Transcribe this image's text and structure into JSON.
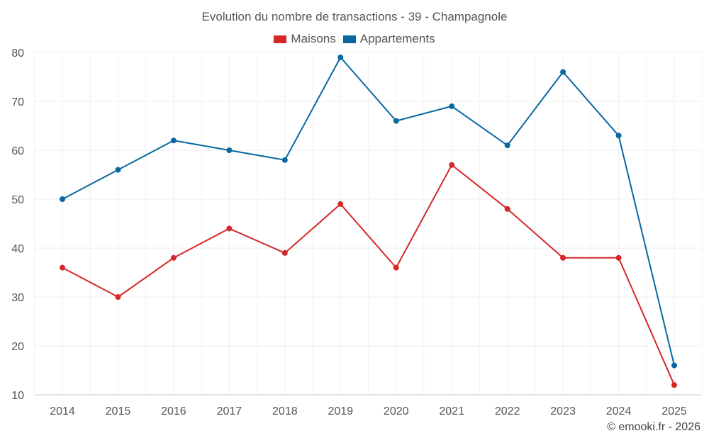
{
  "chart_data": {
    "type": "line",
    "title": "Evolution du nombre de transactions - 39 - Champagnole",
    "categories": [
      "2014",
      "2015",
      "2016",
      "2017",
      "2018",
      "2019",
      "2020",
      "2021",
      "2022",
      "2023",
      "2024",
      "2025"
    ],
    "series": [
      {
        "name": "Maisons",
        "color": "#d62728",
        "values": [
          36,
          30,
          38,
          44,
          39,
          49,
          36,
          57,
          48,
          38,
          38,
          12
        ]
      },
      {
        "name": "Appartements",
        "color": "#0868a0",
        "values": [
          50,
          56,
          62,
          60,
          58,
          79,
          66,
          69,
          61,
          76,
          63,
          16
        ]
      }
    ],
    "ylim": [
      10,
      80
    ],
    "yticks": [
      10,
      20,
      30,
      40,
      50,
      60,
      70,
      80
    ],
    "xlabel": "",
    "ylabel": "",
    "grid": true,
    "legend": "top-center"
  },
  "credit": "© emooki.fr - 2026"
}
